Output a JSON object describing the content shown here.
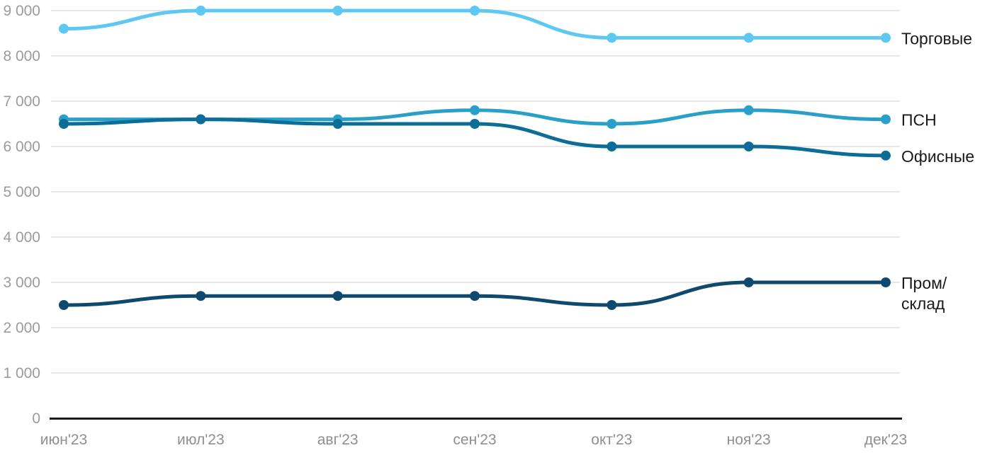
{
  "chart_data": {
    "type": "line",
    "title": "",
    "xlabel": "",
    "ylabel": "",
    "categories": [
      "июн'23",
      "июл'23",
      "авг'23",
      "сен'23",
      "окт'23",
      "ноя'23",
      "дек'23"
    ],
    "series": [
      {
        "id": "torgovye",
        "name": "Торговые",
        "label_lines": [
          "Торговые"
        ],
        "color": "#5EC8F3",
        "values": [
          8600,
          9000,
          9000,
          9000,
          8400,
          8400,
          8400
        ]
      },
      {
        "id": "psn",
        "name": "ПСН",
        "label_lines": [
          "ПСН"
        ],
        "color": "#2AA0C9",
        "values": [
          6600,
          6600,
          6600,
          6800,
          6500,
          6800,
          6600
        ]
      },
      {
        "id": "ofisnye",
        "name": "Офисные",
        "label_lines": [
          "Офисные"
        ],
        "color": "#0C6D96",
        "values": [
          6500,
          6600,
          6500,
          6500,
          6000,
          6000,
          5800
        ]
      },
      {
        "id": "prom-sklad",
        "name": "Пром/склад",
        "label_lines": [
          "Пром/",
          "склад"
        ],
        "color": "#0F4A6E",
        "values": [
          2500,
          2700,
          2700,
          2700,
          2500,
          3000,
          3000
        ]
      }
    ],
    "ylim": [
      0,
      9000
    ],
    "ytick_step": 1000,
    "ytick_labels": [
      "0",
      "1 000",
      "2 000",
      "3 000",
      "4 000",
      "5 000",
      "6 000",
      "7 000",
      "8 000",
      "9 000"
    ],
    "grid": "horizontal",
    "legend_position": "right-of-line-end",
    "colors": {
      "background": "#ffffff",
      "gridline": "#e7e7e7",
      "axis_line": "#1a1a1a",
      "y_tick_text": "#9b9b9b",
      "x_tick_text": "#8f8f8f",
      "series_label_text": "#1a1a1a"
    }
  }
}
